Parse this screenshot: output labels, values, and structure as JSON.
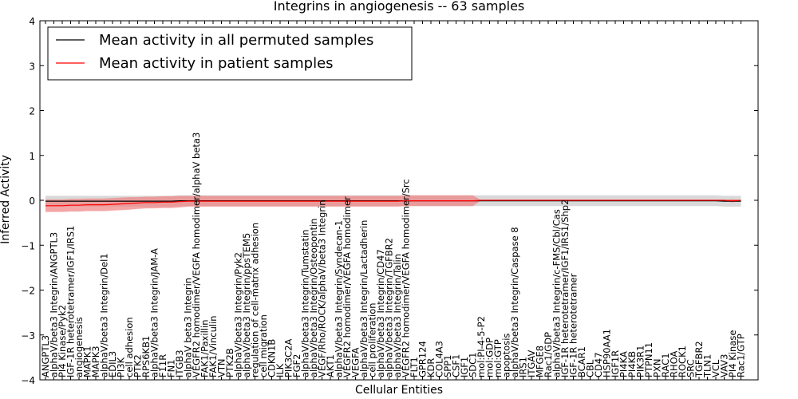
{
  "chart_data": {
    "type": "line",
    "title": "Integrins in angiogenesis -- 63 samples",
    "xlabel": "Cellular Entities",
    "ylabel": "Inferred Activity",
    "ylim": [
      -4,
      4
    ],
    "yticks": [
      -4,
      -3,
      -2,
      -1,
      0,
      1,
      2,
      3,
      4
    ],
    "grid": false,
    "legend_placement": "top-left",
    "colors": {
      "permuted_line": "#000000",
      "permuted_band": "#cccccc",
      "patient_line": "#ff0000",
      "patient_band": "#f08080"
    },
    "categories": [
      "ANGPTL3",
      "alphaV/beta3 Integrin/ANGPTL3",
      "PI4 Kinase/Pyk2",
      "IGF-1R heterotetramer/IGF1/IRS1",
      "angiogenesis",
      "MAPK1",
      "MAPK3",
      "alphaV/beta3 Integrin/Del1",
      "EDIL3",
      "PI3K",
      "cell adhesion",
      "PTK2",
      "RPS6KB1",
      "alphaV/beta3 Integrin/JAM-A",
      "F11R",
      "FN1",
      "ITGB3",
      "alphaV beta3 Integrin",
      "VEGFR2 homodimer/VEGFA homodimer/alphaV beta3",
      "FAK1/Paxillin",
      "FAK1/Vinculin",
      "VTN",
      "PTK2B",
      "alphaV/beta3 Integrin/Pyk2",
      "alphaV/beta3 Integrin/ppsTEM5",
      "regulation of cell-matrix adhesion",
      "cell migration",
      "CDKN1B",
      "ILK",
      "PIK3C2A",
      "FGF2",
      "alphaV/beta3 Integrin/Tumstatin",
      "alphaV/beta3 Integrin/Osteopontin",
      "VEGF/Rho/ROCK/alphaV/beta3 Integrin",
      "AKT1",
      "alphaV/beta3 Integrin/Syndecan-1",
      "VEGFR2 homodimer/VEGFA homodimer",
      "VEGFA",
      "alphaV/beta3 Integrin/Lactadherin",
      "cell proliferation",
      "alphaV/beta3 Integrin/CD47",
      "alphaV/beta3 Integrin/TGFBR2",
      "alphaV/beta3 Integrin/Talin",
      "VEGFR2 homodimer/VEGFA homodimer/Src",
      "FLT1",
      "GPR124",
      "KDR",
      "COL4A3",
      "SPP1",
      "CSF1",
      "IGF1",
      "SDC1",
      "mol:PI-4-5-P2",
      "mol:GDP",
      "mol:GTP",
      "apoptosis",
      "alphaV/beta3 Integrin/Caspase 8",
      "IRS1",
      "ITGAV",
      "MFGE8",
      "Rac1/GDP",
      "alphaV/beta3 Integrin/c-FMS/Cbl/Cas",
      "IGF-1R heterotetramer/IGF1/IRS1/Shp2",
      "IGF-1R heterotetramer",
      "BCAR1",
      "CBL",
      "CD47",
      "HSP90AA1",
      "IGF1R",
      "PI4KA",
      "PI4KB",
      "PIK3R1",
      "PTPN11",
      "PXN",
      "RAC1",
      "RHOA",
      "ROCK1",
      "SRC",
      "TGFBR2",
      "TLN1",
      "VCL",
      "VAV3",
      "PI4 Kinase",
      "Rac1/GTP"
    ],
    "series": [
      {
        "name": "Mean activity in all permuted samples",
        "values": [
          -0.02,
          -0.02,
          -0.02,
          -0.02,
          -0.02,
          -0.02,
          -0.02,
          -0.02,
          -0.02,
          -0.02,
          -0.02,
          -0.02,
          -0.02,
          -0.02,
          -0.02,
          -0.02,
          -0.01,
          -0.01,
          -0.01,
          -0.01,
          -0.01,
          -0.01,
          -0.01,
          -0.01,
          -0.01,
          -0.01,
          -0.01,
          -0.01,
          -0.01,
          -0.01,
          -0.01,
          -0.01,
          -0.01,
          -0.01,
          -0.01,
          -0.01,
          -0.01,
          -0.01,
          -0.01,
          -0.01,
          -0.01,
          -0.01,
          -0.01,
          -0.01,
          -0.01,
          -0.01,
          -0.01,
          -0.01,
          -0.01,
          -0.01,
          -0.01,
          -0.01,
          -0.01,
          -0.01,
          -0.01,
          -0.01,
          -0.01,
          -0.01,
          -0.01,
          -0.01,
          -0.01,
          -0.01,
          -0.01,
          -0.01,
          -0.01,
          -0.01,
          -0.01,
          -0.01,
          -0.01,
          -0.01,
          -0.01,
          -0.01,
          -0.01,
          -0.01,
          -0.01,
          -0.01,
          -0.01,
          -0.01,
          -0.01,
          -0.01,
          -0.01,
          -0.02,
          -0.02,
          -0.02
        ],
        "spread": [
          0.12,
          0.12,
          0.12,
          0.12,
          0.12,
          0.12,
          0.12,
          0.12,
          0.12,
          0.12,
          0.12,
          0.12,
          0.12,
          0.12,
          0.12,
          0.12,
          0.12,
          0.12,
          0.12,
          0.12,
          0.12,
          0.12,
          0.12,
          0.12,
          0.12,
          0.12,
          0.12,
          0.12,
          0.12,
          0.12,
          0.12,
          0.12,
          0.12,
          0.12,
          0.12,
          0.12,
          0.12,
          0.12,
          0.12,
          0.12,
          0.12,
          0.12,
          0.12,
          0.12,
          0.12,
          0.12,
          0.12,
          0.12,
          0.12,
          0.12,
          0.12,
          0.12,
          0.12,
          0.12,
          0.12,
          0.12,
          0.12,
          0.12,
          0.12,
          0.12,
          0.12,
          0.12,
          0.12,
          0.12,
          0.12,
          0.12,
          0.12,
          0.12,
          0.12,
          0.12,
          0.12,
          0.12,
          0.12,
          0.12,
          0.12,
          0.12,
          0.12,
          0.12,
          0.12,
          0.12,
          0.12,
          0.12,
          0.12,
          0.12
        ]
      },
      {
        "name": "Mean activity in patient samples",
        "values": [
          -0.12,
          -0.12,
          -0.12,
          -0.11,
          -0.11,
          -0.1,
          -0.1,
          -0.1,
          -0.09,
          -0.08,
          -0.07,
          -0.06,
          -0.05,
          -0.05,
          -0.04,
          -0.04,
          -0.03,
          -0.02,
          -0.02,
          -0.02,
          -0.02,
          -0.02,
          -0.02,
          -0.02,
          -0.02,
          -0.02,
          -0.02,
          -0.02,
          -0.02,
          -0.02,
          -0.02,
          -0.02,
          -0.02,
          -0.02,
          -0.02,
          -0.02,
          -0.02,
          -0.02,
          -0.02,
          -0.02,
          -0.02,
          -0.02,
          -0.02,
          -0.01,
          -0.01,
          -0.01,
          -0.01,
          -0.01,
          -0.01,
          -0.01,
          -0.01,
          -0.01,
          0.0,
          0.0,
          0.0,
          0.0,
          0.0,
          0.0,
          0.0,
          0.0,
          0.0,
          0.0,
          0.0,
          0.0,
          0.0,
          0.0,
          0.0,
          0.0,
          0.0,
          0.0,
          0.0,
          0.0,
          0.0,
          0.0,
          0.0,
          0.0,
          0.0,
          0.0,
          0.0,
          0.0,
          0.0,
          0.0,
          -0.01,
          0.0
        ],
        "spread": [
          0.14,
          0.14,
          0.14,
          0.14,
          0.14,
          0.14,
          0.14,
          0.14,
          0.14,
          0.14,
          0.14,
          0.13,
          0.13,
          0.13,
          0.13,
          0.13,
          0.13,
          0.12,
          0.12,
          0.12,
          0.12,
          0.12,
          0.12,
          0.12,
          0.12,
          0.12,
          0.12,
          0.12,
          0.12,
          0.12,
          0.12,
          0.12,
          0.12,
          0.12,
          0.12,
          0.12,
          0.12,
          0.12,
          0.12,
          0.12,
          0.12,
          0.12,
          0.12,
          0.12,
          0.12,
          0.12,
          0.12,
          0.12,
          0.12,
          0.12,
          0.12,
          0.12,
          0.0,
          0.0,
          0.0,
          0.0,
          0.0,
          0.0,
          0.0,
          0.0,
          0.0,
          0.0,
          0.0,
          0.0,
          0.0,
          0.0,
          0.0,
          0.0,
          0.0,
          0.0,
          0.0,
          0.0,
          0.0,
          0.0,
          0.0,
          0.0,
          0.0,
          0.0,
          0.0,
          0.0,
          0.0,
          0.0,
          0.04,
          0.0
        ]
      }
    ]
  }
}
